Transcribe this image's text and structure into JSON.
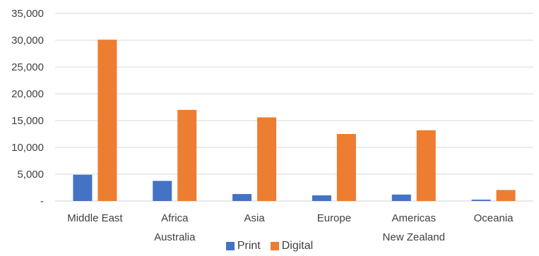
{
  "chart_data": {
    "type": "bar",
    "categories": [
      "Middle East",
      "Africa",
      "Asia",
      "Europe",
      "Americas",
      "Oceania"
    ],
    "secondary_labels": [
      "",
      "Australia",
      "",
      "",
      "New Zealand",
      ""
    ],
    "series": [
      {
        "name": "Print",
        "color": "#4472C4",
        "values": [
          4900,
          3750,
          1300,
          1050,
          1200,
          250
        ]
      },
      {
        "name": "Digital",
        "color": "#ED7D31",
        "values": [
          30100,
          17000,
          15600,
          12500,
          13200,
          2050
        ]
      }
    ],
    "ylim": [
      0,
      35000
    ],
    "y_ticks": [
      "-",
      "5,000",
      "10,000",
      "15,000",
      "20,000",
      "25,000",
      "30,000",
      "35,000"
    ],
    "grid": true,
    "legend_position": "bottom",
    "title": "",
    "xlabel": "",
    "ylabel": ""
  }
}
